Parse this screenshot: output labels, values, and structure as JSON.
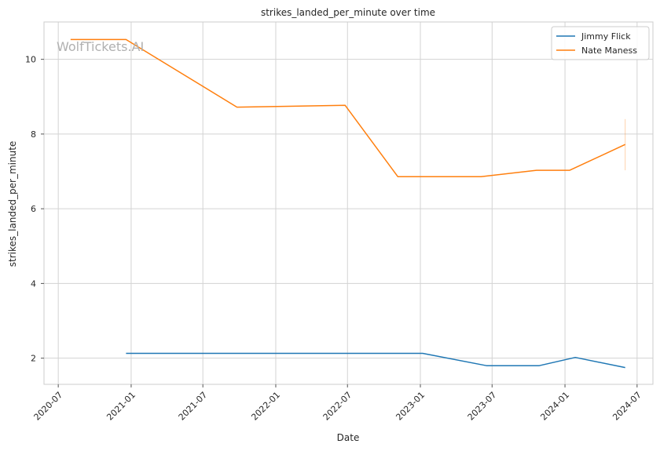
{
  "chart_data": {
    "type": "line",
    "title": "strikes_landed_per_minute over time",
    "xlabel": "Date",
    "ylabel": "strikes_landed_per_minute",
    "watermark": "WolfTickets.AI",
    "x_axis": "date",
    "xlim": [
      "2020-05-26",
      "2024-08-10"
    ],
    "ylim": [
      1.3,
      11.0
    ],
    "x_ticks": [
      "2020-07",
      "2021-01",
      "2021-07",
      "2022-01",
      "2022-07",
      "2023-01",
      "2023-07",
      "2024-01",
      "2024-07"
    ],
    "y_ticks": [
      2,
      4,
      6,
      8,
      10
    ],
    "grid": true,
    "legend_position": "top-right",
    "series": [
      {
        "name": "Jimmy Flick",
        "color": "#1f77b4",
        "points": [
          {
            "x": "2020-12-19",
            "y": 2.13
          },
          {
            "x": "2023-01-07",
            "y": 2.13
          },
          {
            "x": "2023-06-17",
            "y": 1.8
          },
          {
            "x": "2023-10-28",
            "y": 1.8
          },
          {
            "x": "2024-01-27",
            "y": 2.02
          },
          {
            "x": "2024-06-01",
            "y": 1.75
          }
        ]
      },
      {
        "name": "Nate Maness",
        "color": "#ff7f0e",
        "points": [
          {
            "x": "2020-08-01",
            "y": 10.53
          },
          {
            "x": "2020-12-19",
            "y": 10.53
          },
          {
            "x": "2021-09-25",
            "y": 8.72
          },
          {
            "x": "2022-06-25",
            "y": 8.77
          },
          {
            "x": "2022-11-05",
            "y": 6.86
          },
          {
            "x": "2023-06-03",
            "y": 6.86
          },
          {
            "x": "2023-10-21",
            "y": 7.03
          },
          {
            "x": "2024-01-13",
            "y": 7.03
          },
          {
            "x": "2024-06-01",
            "y": 7.72
          }
        ],
        "error_band": {
          "x": "2024-06-01",
          "low": 7.03,
          "high": 8.4
        }
      }
    ]
  }
}
